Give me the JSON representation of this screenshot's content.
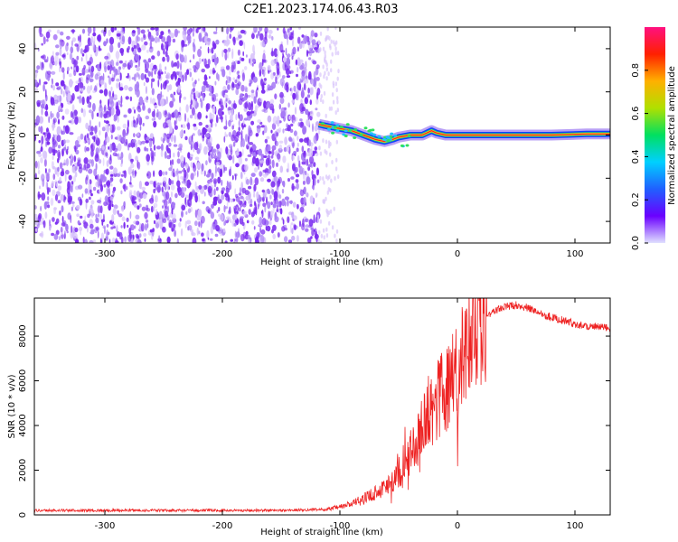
{
  "title": "C2E1.2023.174.06.43.R03",
  "colors": {
    "noise": "#7b2cf0",
    "noise_light": "#d8c4fb",
    "track_core": "#ff2020",
    "track_mid": "#f0d020",
    "track_edge": "#1040ff",
    "snr_line": "#ee2222",
    "axis": "#000000"
  },
  "colorbar": {
    "label": "Normalized spectral amplitude",
    "ticks": [
      "0.0",
      "0.2",
      "0.4",
      "0.6",
      "0.8"
    ],
    "tick_values": [
      0.0,
      0.2,
      0.4,
      0.6,
      0.8
    ],
    "range": [
      0,
      1
    ],
    "stops": [
      "#e0e0ff",
      "#6a00ff",
      "#2060ff",
      "#00d0ff",
      "#00e060",
      "#b0e000",
      "#ffb000",
      "#ff2000",
      "#ff1080"
    ]
  },
  "chart_data": [
    {
      "type": "heatmap",
      "xlabel": "Height of straight line (km)",
      "ylabel": "Frequency (Hz)",
      "xlim": [
        -360,
        130
      ],
      "ylim": [
        -50,
        50
      ],
      "xticks": [
        -300,
        -200,
        -100,
        0,
        100
      ],
      "xtick_labels": [
        "-300",
        "-200",
        "-100",
        "0",
        "100"
      ],
      "yticks": [
        -40,
        -20,
        0,
        20,
        40
      ],
      "ytick_labels": [
        "-40",
        "-20",
        "0",
        "20",
        "40"
      ],
      "noise_region_x": [
        -360,
        -118
      ],
      "track": {
        "x": [
          -118,
          -110,
          -100,
          -90,
          -80,
          -70,
          -62,
          -55,
          -50,
          -40,
          -30,
          -22,
          -18,
          -10,
          0,
          20,
          50,
          80,
          110,
          130
        ],
        "y": [
          5,
          4,
          3,
          2,
          0,
          -2,
          -3,
          -2,
          -1,
          0,
          0,
          2,
          1,
          0,
          0,
          0,
          0,
          0,
          0.5,
          0.5
        ]
      }
    },
    {
      "type": "line",
      "xlabel": "Height of straight line (km)",
      "ylabel": "SNR (10 * v/v)",
      "xlim": [
        -360,
        130
      ],
      "ylim": [
        0,
        9700
      ],
      "xticks": [
        -300,
        -200,
        -100,
        0,
        100
      ],
      "xtick_labels": [
        "-300",
        "-200",
        "-100",
        "0",
        "100"
      ],
      "yticks": [
        0,
        2000,
        4000,
        6000,
        8000
      ],
      "ytick_labels": [
        "0",
        "2000",
        "4000",
        "6000",
        "8000"
      ],
      "series": [
        {
          "x": [
            -360,
            -300,
            -200,
            -150,
            -110,
            -100,
            -90,
            -80,
            -70,
            -60,
            -50,
            -45,
            -40,
            -35,
            -30,
            -25,
            -20,
            -15,
            -10,
            -5,
            0,
            5,
            10,
            15,
            20,
            30,
            40,
            50,
            60,
            70,
            80,
            90,
            100,
            110,
            120,
            130
          ],
          "y": [
            200,
            200,
            200,
            200,
            250,
            350,
            500,
            700,
            1000,
            1300,
            1800,
            2300,
            2800,
            3400,
            3900,
            4400,
            4900,
            5300,
            5700,
            6100,
            6500,
            7000,
            7600,
            8100,
            8600,
            9100,
            9300,
            9400,
            9250,
            9050,
            8850,
            8700,
            8550,
            8450,
            8400,
            8350
          ]
        }
      ]
    }
  ]
}
